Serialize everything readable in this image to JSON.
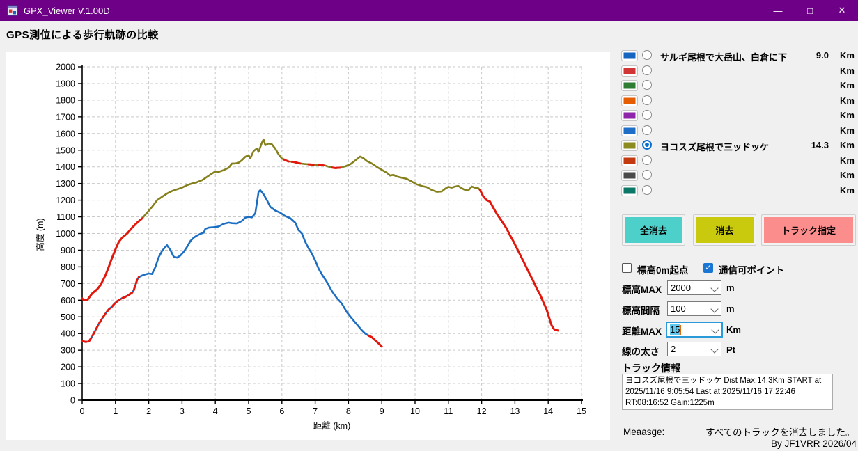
{
  "window": {
    "title": "GPX_Viewer V.1.00D",
    "controls": {
      "minimize": "—",
      "maximize": "□",
      "close": "✕"
    }
  },
  "icons": {
    "check": "✓"
  },
  "page_heading": "GPS測位による歩行軌跡の比較",
  "track_list": {
    "rows": [
      {
        "color": "#1565c0",
        "selected": false,
        "label": "サルギ尾根で大岳山、白倉に下",
        "distance": "9.0",
        "unit": "Km"
      },
      {
        "color": "#d23535",
        "selected": false,
        "label": "",
        "distance": "",
        "unit": "Km"
      },
      {
        "color": "#2e7d32",
        "selected": false,
        "label": "",
        "distance": "",
        "unit": "Km"
      },
      {
        "color": "#e65c00",
        "selected": false,
        "label": "",
        "distance": "",
        "unit": "Km"
      },
      {
        "color": "#8e24aa",
        "selected": false,
        "label": "",
        "distance": "",
        "unit": "Km"
      },
      {
        "color": "#1e6ec8",
        "selected": false,
        "label": "",
        "distance": "",
        "unit": "Km"
      },
      {
        "color": "#8b8b1f",
        "selected": true,
        "label": "ヨコスズ尾根で三ッドッケ",
        "distance": "14.3",
        "unit": "Km"
      },
      {
        "color": "#c33a10",
        "selected": false,
        "label": "",
        "distance": "",
        "unit": "Km"
      },
      {
        "color": "#4a4a4a",
        "selected": false,
        "label": "",
        "distance": "",
        "unit": "Km"
      },
      {
        "color": "#0b7766",
        "selected": false,
        "label": "",
        "distance": "",
        "unit": "Km"
      }
    ]
  },
  "buttons": {
    "clear_all": {
      "label": "全消去",
      "color": "#4dcfca"
    },
    "clear": {
      "label": "消去",
      "color": "#c9c90e"
    },
    "track_select": {
      "label": "トラック指定",
      "color": "#fb8d8d"
    }
  },
  "checkboxes": [
    {
      "label": "標高0m起点",
      "checked": false
    },
    {
      "label": "通信可ポイント",
      "checked": true
    }
  ],
  "settings": [
    {
      "label": "標高MAX",
      "value": "2000",
      "unit": "m",
      "focused": false
    },
    {
      "label": "標高間隔",
      "value": "100",
      "unit": "m",
      "focused": false
    },
    {
      "label": "距離MAX",
      "value": "15",
      "unit": "Km",
      "focused": true
    },
    {
      "label": "線の太さ",
      "value": "2",
      "unit": "Pt",
      "focused": false
    }
  ],
  "track_info": {
    "heading": "トラック情報",
    "lines": [
      "ヨコスズ尾根で三ッドッケ Dist Max:14.3Km START at",
      "2025/11/16 9:05:54 Last at:2025/11/16 17:22:46",
      "RT:08:16:52 Gain:1225m"
    ]
  },
  "message": {
    "label": "Meaasge:",
    "text": "すべてのトラックを消去しました。"
  },
  "credit": "By JF1VRR 2026/04",
  "chart_data": {
    "type": "line",
    "title": "",
    "xlabel": "距離 (km)",
    "ylabel": "高度 (m)",
    "xlim": [
      0,
      15
    ],
    "ylim": [
      0,
      2000
    ],
    "x_tick_step": 1,
    "y_tick_step": 100,
    "grid": true,
    "highlight_color": "#e3170c",
    "series": [
      {
        "name": "ヨコスズ尾根で三ッドッケ",
        "color": "#85801c",
        "points": [
          [
            0,
            610
          ],
          [
            0.05,
            600
          ],
          [
            0.15,
            600
          ],
          [
            0.3,
            640
          ],
          [
            0.45,
            665
          ],
          [
            0.55,
            690
          ],
          [
            0.7,
            750
          ],
          [
            0.8,
            800
          ],
          [
            0.9,
            855
          ],
          [
            1.0,
            905
          ],
          [
            1.1,
            950
          ],
          [
            1.2,
            975
          ],
          [
            1.35,
            1000
          ],
          [
            1.5,
            1035
          ],
          [
            1.65,
            1065
          ],
          [
            1.8,
            1090
          ],
          [
            1.95,
            1125
          ],
          [
            2.1,
            1160
          ],
          [
            2.25,
            1200
          ],
          [
            2.4,
            1220
          ],
          [
            2.55,
            1240
          ],
          [
            2.7,
            1255
          ],
          [
            2.85,
            1265
          ],
          [
            3.0,
            1275
          ],
          [
            3.15,
            1290
          ],
          [
            3.3,
            1300
          ],
          [
            3.45,
            1308
          ],
          [
            3.6,
            1320
          ],
          [
            3.75,
            1340
          ],
          [
            3.9,
            1360
          ],
          [
            4.0,
            1372
          ],
          [
            4.1,
            1370
          ],
          [
            4.25,
            1380
          ],
          [
            4.4,
            1395
          ],
          [
            4.5,
            1420
          ],
          [
            4.6,
            1420
          ],
          [
            4.7,
            1425
          ],
          [
            4.8,
            1440
          ],
          [
            4.9,
            1460
          ],
          [
            5.0,
            1470
          ],
          [
            5.05,
            1450
          ],
          [
            5.15,
            1495
          ],
          [
            5.25,
            1510
          ],
          [
            5.3,
            1490
          ],
          [
            5.4,
            1545
          ],
          [
            5.45,
            1565
          ],
          [
            5.5,
            1530
          ],
          [
            5.6,
            1540
          ],
          [
            5.7,
            1535
          ],
          [
            5.8,
            1510
          ],
          [
            5.9,
            1475
          ],
          [
            6.0,
            1450
          ],
          [
            6.1,
            1440
          ],
          [
            6.2,
            1432
          ],
          [
            6.35,
            1430
          ],
          [
            6.5,
            1422
          ],
          [
            6.65,
            1418
          ],
          [
            6.8,
            1415
          ],
          [
            7.0,
            1412
          ],
          [
            7.15,
            1410
          ],
          [
            7.3,
            1408
          ],
          [
            7.45,
            1398
          ],
          [
            7.6,
            1393
          ],
          [
            7.75,
            1395
          ],
          [
            7.9,
            1403
          ],
          [
            8.05,
            1415
          ],
          [
            8.2,
            1438
          ],
          [
            8.35,
            1462
          ],
          [
            8.45,
            1452
          ],
          [
            8.55,
            1435
          ],
          [
            8.7,
            1420
          ],
          [
            8.85,
            1400
          ],
          [
            9.0,
            1382
          ],
          [
            9.15,
            1365
          ],
          [
            9.25,
            1348
          ],
          [
            9.35,
            1352
          ],
          [
            9.45,
            1342
          ],
          [
            9.6,
            1335
          ],
          [
            9.75,
            1328
          ],
          [
            9.9,
            1312
          ],
          [
            10.05,
            1295
          ],
          [
            10.2,
            1285
          ],
          [
            10.35,
            1278
          ],
          [
            10.5,
            1262
          ],
          [
            10.65,
            1250
          ],
          [
            10.8,
            1252
          ],
          [
            10.9,
            1268
          ],
          [
            11.0,
            1280
          ],
          [
            11.1,
            1275
          ],
          [
            11.2,
            1282
          ],
          [
            11.3,
            1285
          ],
          [
            11.4,
            1272
          ],
          [
            11.5,
            1262
          ],
          [
            11.6,
            1258
          ],
          [
            11.7,
            1282
          ],
          [
            11.8,
            1275
          ],
          [
            11.9,
            1272
          ],
          [
            11.95,
            1262
          ],
          [
            12.05,
            1222
          ],
          [
            12.15,
            1200
          ],
          [
            12.25,
            1192
          ],
          [
            12.35,
            1155
          ],
          [
            12.45,
            1120
          ],
          [
            12.55,
            1090
          ],
          [
            12.65,
            1060
          ],
          [
            12.75,
            1030
          ],
          [
            12.85,
            990
          ],
          [
            12.95,
            955
          ],
          [
            13.05,
            915
          ],
          [
            13.15,
            875
          ],
          [
            13.25,
            835
          ],
          [
            13.35,
            795
          ],
          [
            13.45,
            755
          ],
          [
            13.55,
            715
          ],
          [
            13.65,
            672
          ],
          [
            13.75,
            635
          ],
          [
            13.85,
            590
          ],
          [
            13.95,
            545
          ],
          [
            14.05,
            480
          ],
          [
            14.1,
            450
          ],
          [
            14.15,
            432
          ],
          [
            14.2,
            422
          ],
          [
            14.3,
            418
          ]
        ],
        "red_segments": [
          [
            0,
            1.8
          ],
          [
            6.05,
            6.2
          ],
          [
            6.3,
            6.55
          ],
          [
            6.8,
            6.95
          ],
          [
            7.1,
            7.25
          ],
          [
            7.5,
            7.75
          ],
          [
            11.95,
            14.3
          ]
        ]
      },
      {
        "name": "サルギ尾根で大岳山、白倉に下",
        "color": "#1b6ec2",
        "points": [
          [
            0,
            355
          ],
          [
            0.1,
            350
          ],
          [
            0.2,
            352
          ],
          [
            0.3,
            382
          ],
          [
            0.4,
            420
          ],
          [
            0.5,
            458
          ],
          [
            0.6,
            490
          ],
          [
            0.7,
            520
          ],
          [
            0.8,
            545
          ],
          [
            0.9,
            562
          ],
          [
            1.0,
            585
          ],
          [
            1.1,
            600
          ],
          [
            1.2,
            612
          ],
          [
            1.3,
            620
          ],
          [
            1.4,
            632
          ],
          [
            1.5,
            645
          ],
          [
            1.55,
            660
          ],
          [
            1.65,
            722
          ],
          [
            1.7,
            738
          ],
          [
            1.8,
            748
          ],
          [
            1.9,
            755
          ],
          [
            2.0,
            760
          ],
          [
            2.1,
            757
          ],
          [
            2.2,
            800
          ],
          [
            2.3,
            858
          ],
          [
            2.4,
            895
          ],
          [
            2.5,
            920
          ],
          [
            2.55,
            930
          ],
          [
            2.65,
            900
          ],
          [
            2.75,
            862
          ],
          [
            2.85,
            855
          ],
          [
            2.95,
            868
          ],
          [
            3.05,
            890
          ],
          [
            3.15,
            920
          ],
          [
            3.25,
            955
          ],
          [
            3.35,
            975
          ],
          [
            3.45,
            988
          ],
          [
            3.55,
            998
          ],
          [
            3.65,
            1005
          ],
          [
            3.7,
            1028
          ],
          [
            3.8,
            1035
          ],
          [
            3.95,
            1038
          ],
          [
            4.1,
            1042
          ],
          [
            4.25,
            1058
          ],
          [
            4.4,
            1065
          ],
          [
            4.5,
            1062
          ],
          [
            4.65,
            1060
          ],
          [
            4.8,
            1075
          ],
          [
            4.9,
            1095
          ],
          [
            5.0,
            1100
          ],
          [
            5.1,
            1097
          ],
          [
            5.2,
            1122
          ],
          [
            5.3,
            1250
          ],
          [
            5.35,
            1260
          ],
          [
            5.45,
            1235
          ],
          [
            5.55,
            1200
          ],
          [
            5.65,
            1160
          ],
          [
            5.8,
            1138
          ],
          [
            5.95,
            1125
          ],
          [
            6.1,
            1105
          ],
          [
            6.25,
            1092
          ],
          [
            6.4,
            1065
          ],
          [
            6.5,
            1020
          ],
          [
            6.6,
            1000
          ],
          [
            6.7,
            950
          ],
          [
            6.8,
            912
          ],
          [
            6.9,
            880
          ],
          [
            7.0,
            838
          ],
          [
            7.1,
            790
          ],
          [
            7.2,
            755
          ],
          [
            7.35,
            710
          ],
          [
            7.5,
            655
          ],
          [
            7.65,
            612
          ],
          [
            7.8,
            580
          ],
          [
            7.95,
            528
          ],
          [
            8.1,
            490
          ],
          [
            8.25,
            455
          ],
          [
            8.4,
            420
          ],
          [
            8.5,
            400
          ],
          [
            8.6,
            388
          ],
          [
            8.7,
            378
          ],
          [
            8.8,
            360
          ],
          [
            8.9,
            342
          ],
          [
            9.0,
            322
          ]
        ],
        "red_segments": [
          [
            0,
            1.7,
            1
          ],
          [
            8.6,
            9.0
          ]
        ]
      }
    ]
  }
}
